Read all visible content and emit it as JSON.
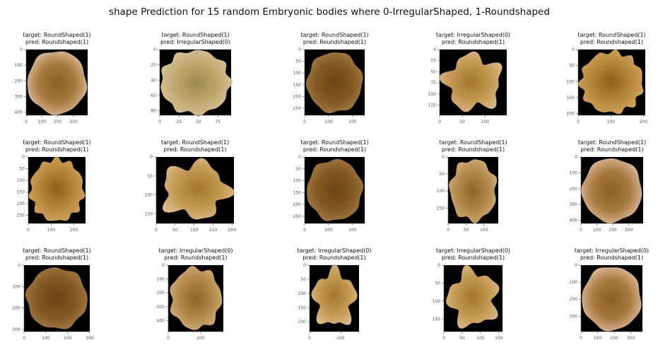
{
  "suptitle": "shape Prediction for 15 random Embryonic bodies where 0-IrregularShaped, 1-Roundshaped",
  "colors": {
    "background": "#000000",
    "axis": "#555555",
    "text": "#111111"
  },
  "chart_data": [
    {
      "type": "image",
      "target": "target: RoundShaped(1)",
      "pred": "pred: Roundshaped(1)",
      "xticks": [
        "0",
        "100",
        "200",
        "300"
      ],
      "yticks": [
        "0",
        "100",
        "200",
        "300",
        "400"
      ],
      "xlim": [
        0,
        390
      ],
      "ylim": [
        0,
        420
      ],
      "shape": "round-brown"
    },
    {
      "type": "image",
      "target": "target: RoundShaped(1)",
      "pred": "pred: IrregularShaped(0)",
      "xticks": [
        "0",
        "25",
        "50",
        "75"
      ],
      "yticks": [
        "0",
        "20",
        "40",
        "60",
        "80"
      ],
      "xlim": [
        0,
        92
      ],
      "ylim": [
        0,
        86
      ],
      "shape": "rough-pale"
    },
    {
      "type": "image",
      "target": "target: RoundShaped(1)",
      "pred": "pred: Roundshaped(1)",
      "xticks": [
        "0",
        "100",
        "200"
      ],
      "yticks": [
        "0",
        "50",
        "100",
        "150",
        "200",
        "250"
      ],
      "xlim": [
        0,
        250
      ],
      "ylim": [
        0,
        280
      ],
      "shape": "round-dark"
    },
    {
      "type": "image",
      "target": "target: IrregularShaped(0)",
      "pred": "pred: Roundshaped(1)",
      "xticks": [
        "0",
        "50",
        "100"
      ],
      "yticks": [
        "0",
        "25",
        "50",
        "75",
        "100",
        "125"
      ],
      "xlim": [
        0,
        148
      ],
      "ylim": [
        0,
        148
      ],
      "shape": "irregular"
    },
    {
      "type": "image",
      "target": "target: RoundShaped(1)",
      "pred": "pred: Roundshaped(1)",
      "xticks": [
        "0",
        "100",
        "200"
      ],
      "yticks": [
        "0",
        "50",
        "100",
        "150",
        "200"
      ],
      "xlim": [
        0,
        205
      ],
      "ylim": [
        0,
        205
      ],
      "shape": "round-bumpy"
    },
    {
      "type": "image",
      "target": "target: RoundShaped(1)",
      "pred": "pred: Roundshaped(1)",
      "xticks": [
        "0",
        "100",
        "200"
      ],
      "yticks": [
        "0",
        "50",
        "100",
        "150",
        "200",
        "250"
      ],
      "xlim": [
        0,
        250
      ],
      "ylim": [
        0,
        285
      ],
      "shape": "round-bumpy"
    },
    {
      "type": "image",
      "target": "target: RoundShaped(1)",
      "pred": "pred: Roundshaped(1)",
      "xticks": [
        "0",
        "50",
        "100",
        "150",
        "200"
      ],
      "yticks": [
        "0",
        "50",
        "100",
        "150"
      ],
      "xlim": [
        0,
        205
      ],
      "ylim": [
        0,
        175
      ],
      "shape": "irregular"
    },
    {
      "type": "image",
      "target": "target: RoundShaped(1)",
      "pred": "pred: Roundshaped(1)",
      "xticks": [
        "0",
        "100",
        "200"
      ],
      "yticks": [
        "0",
        "50",
        "100",
        "150",
        "200",
        "250"
      ],
      "xlim": [
        0,
        250
      ],
      "ylim": [
        0,
        280
      ],
      "shape": "round-dark"
    },
    {
      "type": "image",
      "target": "target: RoundShaped(1)",
      "pred": "pred: Roundshaped(1)",
      "xticks": [
        "0",
        "50",
        "100"
      ],
      "yticks": [
        "0",
        "50",
        "100",
        "150"
      ],
      "xlim": [
        0,
        140
      ],
      "ylim": [
        0,
        195
      ],
      "shape": "tall-blob"
    },
    {
      "type": "image",
      "target": "target: RoundShaped(1)",
      "pred": "pred: Roundshaped(1)",
      "xticks": [
        "0",
        "100",
        "200",
        "300"
      ],
      "yticks": [
        "0",
        "100",
        "200",
        "300",
        "400"
      ],
      "xlim": [
        0,
        390
      ],
      "ylim": [
        0,
        420
      ],
      "shape": "round-brown"
    },
    {
      "type": "image",
      "target": "target: RoundShaped(1)",
      "pred": "pred: Roundshaped(1)",
      "xticks": [
        "0",
        "100",
        "200",
        "300"
      ],
      "yticks": [
        "0",
        "100",
        "200",
        "300"
      ],
      "xlim": [
        0,
        300
      ],
      "ylim": [
        0,
        310
      ],
      "shape": "round-dark"
    },
    {
      "type": "image",
      "target": "target: IrregularShaped(0)",
      "pred": "pred: Roundshaped(1)",
      "xticks": [
        "0",
        "200"
      ],
      "yticks": [
        "0",
        "100",
        "200",
        "300",
        "400"
      ],
      "xlim": [
        0,
        340
      ],
      "ylim": [
        0,
        480
      ],
      "shape": "tall-blob"
    },
    {
      "type": "image",
      "target": "target: IrregularShaped(0)",
      "pred": "pred: Roundshaped(1)",
      "xticks": [
        "0",
        "100"
      ],
      "yticks": [
        "0",
        "50",
        "100",
        "150",
        "200"
      ],
      "xlim": [
        0,
        160
      ],
      "ylim": [
        0,
        235
      ],
      "shape": "irregular"
    },
    {
      "type": "image",
      "target": "target: IrregularShaped(0)",
      "pred": "pred: Roundshaped(1)",
      "xticks": [
        "0",
        "50",
        "100",
        "150"
      ],
      "yticks": [
        "0",
        "50",
        "100",
        "150"
      ],
      "xlim": [
        0,
        160
      ],
      "ylim": [
        0,
        185
      ],
      "shape": "irregular"
    },
    {
      "type": "image",
      "target": "target: IrregularShaped(0)",
      "pred": "pred: Roundshaped(1)",
      "xticks": [
        "0",
        "100",
        "200",
        "300"
      ],
      "yticks": [
        "0",
        "100",
        "200",
        "300"
      ],
      "xlim": [
        0,
        370
      ],
      "ylim": [
        0,
        390
      ],
      "shape": "round-brown"
    }
  ]
}
